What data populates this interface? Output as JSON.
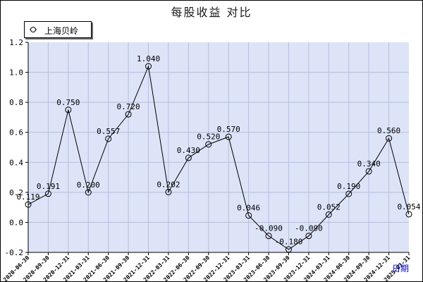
{
  "chart_data": {
    "type": "line",
    "title": "每股收益  对比",
    "xlabel": "日期",
    "ylabel": "",
    "ylim": [
      -0.2,
      1.2
    ],
    "y_ticks": [
      "1.2",
      "1.0",
      "0.8",
      "0.6",
      "0.4",
      "0.2",
      "0.0",
      "-0.2"
    ],
    "y_tick_values": [
      1.2,
      1.0,
      0.8,
      0.6,
      0.4,
      0.2,
      0.0,
      -0.2
    ],
    "grid": true,
    "legend": "top-left",
    "categories": [
      "2020-06-30",
      "2020-09-30",
      "2020-12-31",
      "2021-03-31",
      "2021-06-30",
      "2021-09-30",
      "2021-12-31",
      "2022-03-31",
      "2022-06-30",
      "2022-09-30",
      "2022-12-31",
      "2023-03-31",
      "2023-06-30",
      "2023-09-30",
      "2023-12-31",
      "2024-03-31",
      "2024-06-30",
      "2024-09-30",
      "2024-12-31",
      "2025-03-31"
    ],
    "series": [
      {
        "name": "上海贝岭",
        "values": [
          0.119,
          0.191,
          0.75,
          0.2,
          0.557,
          0.72,
          1.04,
          0.202,
          0.43,
          0.52,
          0.57,
          0.046,
          -0.09,
          -0.18,
          -0.09,
          0.052,
          0.19,
          0.34,
          0.56,
          0.054
        ],
        "labels": [
          "0.119",
          "0.191",
          "0.750",
          "0.200",
          "0.557",
          "0.720",
          "1.040",
          "0.202",
          "0.430",
          "0.520",
          "0.570",
          "0.046",
          "-0.090",
          "-0.180",
          "-0.090",
          "0.052",
          "0.190",
          "0.340",
          "0.560",
          "0.054"
        ]
      }
    ],
    "colors": {
      "plot_background": "#dde4f8",
      "grid": "#b4bedf",
      "line": "#000000",
      "axis": "#000000",
      "x_title": "#0000cc"
    }
  }
}
